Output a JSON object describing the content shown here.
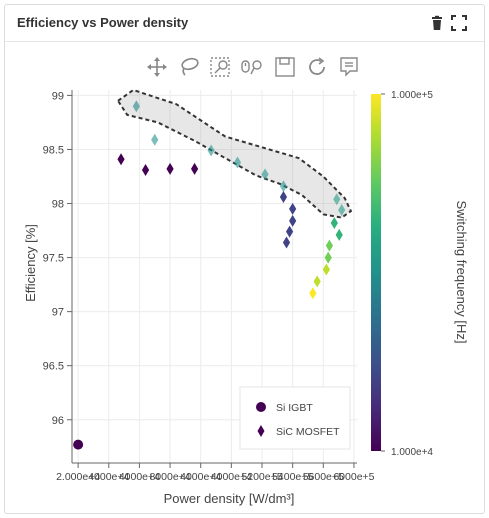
{
  "panel": {
    "title": "Efficiency vs Power density",
    "icons": [
      "trash-icon",
      "fullscreen-icon"
    ]
  },
  "toolbar": {
    "tools": [
      {
        "name": "pan-tool",
        "icon": "move-arrows-icon",
        "active": false
      },
      {
        "name": "lasso-select-tool",
        "icon": "lasso-icon",
        "active": true
      },
      {
        "name": "box-zoom-tool",
        "icon": "magnifier-box-icon",
        "active": false
      },
      {
        "name": "wheel-zoom-tool",
        "icon": "wheel-zoom-icon",
        "active": false
      },
      {
        "name": "save-tool",
        "icon": "floppy-disk-icon",
        "active": false
      },
      {
        "name": "reset-tool",
        "icon": "refresh-icon",
        "active": false
      },
      {
        "name": "hover-tool",
        "icon": "speech-bubble-icon",
        "active": true
      }
    ]
  },
  "chart_data": {
    "type": "scatter",
    "title": "",
    "xlabel": "Power density [W/dm³]",
    "ylabel": "Efficiency [%]",
    "xlim": [
      1.9,
      6.55
    ],
    "ylim": [
      95.6,
      99.05
    ],
    "x_ticks": [
      {
        "v": 2.0,
        "label": "2.000e+4"
      },
      {
        "v": 2.5,
        "label": "4000e+4"
      },
      {
        "v": 3.0,
        "label": "4000e+4"
      },
      {
        "v": 3.5,
        "label": "8000e+4"
      },
      {
        "v": 4.0,
        "label": "4000e+4"
      },
      {
        "v": 4.5,
        "label": "4000e+4"
      },
      {
        "v": 5.0,
        "label": "5200e+5"
      },
      {
        "v": 5.5,
        "label": "5400e+5"
      },
      {
        "v": 6.0,
        "label": "5600e+5"
      },
      {
        "v": 6.5,
        "label": "6000e+5"
      }
    ],
    "y_ticks": [
      96,
      96.5,
      97,
      97.5,
      98,
      98.5,
      99
    ],
    "grid": true,
    "legend": {
      "placement": "bottom-right",
      "entries": [
        {
          "name": "Si IGBT",
          "marker": "circle"
        },
        {
          "name": "SiC MOSFET",
          "marker": "diamond"
        }
      ]
    },
    "colorbar": {
      "label": "Switching frequency [Hz]",
      "min_label": "1.000e+4",
      "max_label": "1.000e+5",
      "colormap": "viridis"
    },
    "series": [
      {
        "name": "Si IGBT",
        "marker": "circle",
        "points": [
          {
            "x": 2.0,
            "y": 95.77,
            "c": 0.0
          }
        ]
      },
      {
        "name": "SiC MOSFET",
        "marker": "diamond",
        "points": [
          {
            "x": 2.7,
            "y": 98.41,
            "c": 0.0
          },
          {
            "x": 3.1,
            "y": 98.31,
            "c": 0.0
          },
          {
            "x": 3.5,
            "y": 98.32,
            "c": 0.0
          },
          {
            "x": 3.9,
            "y": 98.32,
            "c": 0.0
          },
          {
            "x": 2.95,
            "y": 98.9,
            "c": 0.45
          },
          {
            "x": 3.25,
            "y": 98.59,
            "c": 0.5
          },
          {
            "x": 4.17,
            "y": 98.49,
            "c": 0.5
          },
          {
            "x": 4.6,
            "y": 98.38,
            "c": 0.5
          },
          {
            "x": 5.05,
            "y": 98.27,
            "c": 0.5
          },
          {
            "x": 5.35,
            "y": 98.16,
            "c": 0.5
          },
          {
            "x": 5.35,
            "y": 98.06,
            "c": 0.2
          },
          {
            "x": 5.5,
            "y": 97.95,
            "c": 0.2
          },
          {
            "x": 5.5,
            "y": 97.84,
            "c": 0.2
          },
          {
            "x": 5.45,
            "y": 97.74,
            "c": 0.2
          },
          {
            "x": 5.4,
            "y": 97.64,
            "c": 0.2
          },
          {
            "x": 6.22,
            "y": 98.04,
            "c": 0.55
          },
          {
            "x": 6.3,
            "y": 97.94,
            "c": 0.55
          },
          {
            "x": 6.18,
            "y": 97.82,
            "c": 0.65
          },
          {
            "x": 6.26,
            "y": 97.71,
            "c": 0.65
          },
          {
            "x": 6.1,
            "y": 97.61,
            "c": 0.78
          },
          {
            "x": 6.08,
            "y": 97.5,
            "c": 0.78
          },
          {
            "x": 6.05,
            "y": 97.39,
            "c": 0.9
          },
          {
            "x": 5.9,
            "y": 97.28,
            "c": 0.9
          },
          {
            "x": 5.83,
            "y": 97.17,
            "c": 1.0
          }
        ]
      }
    ],
    "lasso": [
      [
        2.65,
        98.95
      ],
      [
        2.9,
        99.05
      ],
      [
        3.6,
        98.92
      ],
      [
        4.4,
        98.62
      ],
      [
        5.0,
        98.52
      ],
      [
        5.6,
        98.42
      ],
      [
        6.0,
        98.25
      ],
      [
        6.35,
        98.05
      ],
      [
        6.45,
        97.93
      ],
      [
        6.3,
        97.87
      ],
      [
        6.0,
        97.9
      ],
      [
        5.65,
        98.08
      ],
      [
        5.3,
        98.18
      ],
      [
        4.9,
        98.26
      ],
      [
        4.4,
        98.42
      ],
      [
        3.9,
        98.58
      ],
      [
        3.3,
        98.75
      ],
      [
        2.8,
        98.82
      ]
    ]
  }
}
